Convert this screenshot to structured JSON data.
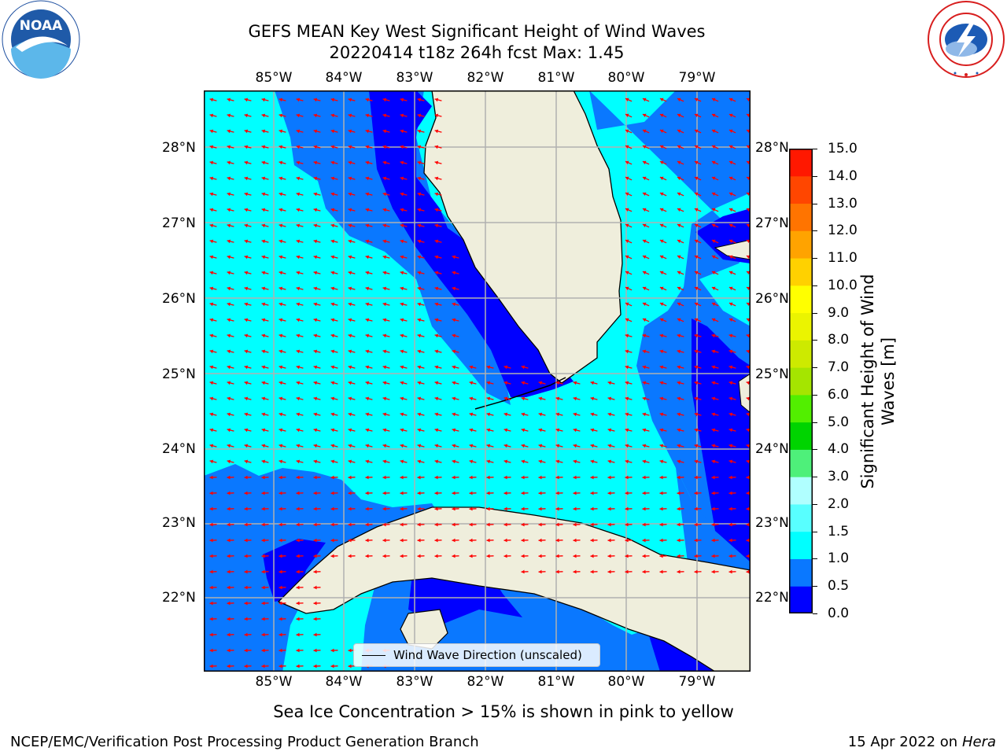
{
  "title_line1": "GEFS MEAN Key West Significant Height of Wind Waves",
  "title_line2": "20220414 t18z 264h fcst   Max: 1.45",
  "lon_ticks": [
    "85°W",
    "84°W",
    "83°W",
    "82°W",
    "81°W",
    "80°W",
    "79°W"
  ],
  "lat_ticks": [
    "28°N",
    "27°N",
    "26°N",
    "25°N",
    "24°N",
    "23°N",
    "22°N"
  ],
  "legend_label": "Wind Wave Direction (unscaled)",
  "colorbar": {
    "label": "Significant Height of Wind Waves [m]",
    "label_line1": "Significant Height of Wind",
    "label_line2": "Waves [m]",
    "ticks": [
      "0.0",
      "0.5",
      "1.0",
      "1.5",
      "2.0",
      "3.0",
      "4.0",
      "5.0",
      "6.0",
      "7.0",
      "8.0",
      "9.0",
      "10.0",
      "11.0",
      "12.0",
      "13.0",
      "14.0",
      "15.0"
    ],
    "colors": [
      "#0000ff",
      "#0a78ff",
      "#00ffff",
      "#58ffff",
      "#b0ffff",
      "#4ef07a",
      "#00d400",
      "#52ef00",
      "#a5e500",
      "#cdea00",
      "#ebf400",
      "#ffff00",
      "#ffd100",
      "#ffa300",
      "#ff7400",
      "#ff4600",
      "#ff1800"
    ]
  },
  "map": {
    "lon_range": [
      -86,
      -78.25
    ],
    "lat_range": [
      21.05,
      28.75
    ],
    "land_color": "#efeedc",
    "arrow_color": "#ff0000",
    "grid_color": "#b0b0b0"
  },
  "footer_main": "Sea Ice Concentration > 15% is shown in pink to yellow",
  "footer_left": "NCEP/EMC/Verification Post Processing Product Generation Branch",
  "footer_right_date": "15 Apr 2022 on ",
  "footer_right_host": "Hera",
  "logos": {
    "left": "noaa-logo",
    "right": "nws-logo",
    "left_text": "NOAA"
  }
}
